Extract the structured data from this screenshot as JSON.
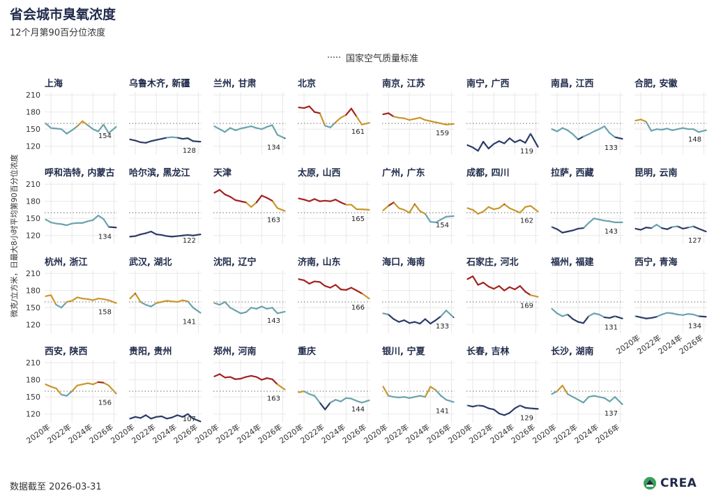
{
  "title": "省会城市臭氧浓度",
  "subtitle": "12个月第90百分位浓度",
  "legend_label": "国家空气质量标准",
  "y_axis_label": "微克/立方米，日最大8小时平均第90百分位浓度",
  "footer": "数据截至 2026-03-31",
  "logo_text": "CREA",
  "colors": {
    "title": "#1f2a4a",
    "low": "#2b3a67",
    "mid_low": "#6aa3ad",
    "mid_high": "#c8962a",
    "high": "#a3211f",
    "standard_line": "#888888",
    "grid": "#e8e8e8",
    "logo_green": "#3aa15a"
  },
  "chart_data": {
    "type": "line",
    "standard": 160,
    "ylim": [
      105,
      215
    ],
    "xlim": [
      2019.4,
      2026.3
    ],
    "y_ticks": [
      120,
      150,
      180,
      210
    ],
    "y_tick_labels": [
      "120",
      "150",
      "180",
      "210"
    ],
    "x_ticks": [
      2020,
      2022,
      2024,
      2026
    ],
    "x_tick_labels": [
      "2020年",
      "2022年",
      "2024年",
      "2026年"
    ],
    "panels": [
      {
        "name": "上海",
        "end": 154,
        "x": [
          2019.5,
          2020,
          2020.5,
          2021,
          2021.5,
          2022,
          2022.5,
          2023,
          2023.5,
          2024,
          2024.5,
          2025,
          2025.5,
          2026.2
        ],
        "y": [
          160,
          152,
          151,
          150,
          142,
          148,
          155,
          164,
          157,
          150,
          146,
          158,
          143,
          154
        ]
      },
      {
        "name": "乌鲁木齐, 新疆",
        "end": 128,
        "x": [
          2019.5,
          2020,
          2020.5,
          2021,
          2021.5,
          2022,
          2022.5,
          2023,
          2023.5,
          2024,
          2024.5,
          2025,
          2025.5,
          2026.2
        ],
        "y": [
          132,
          130,
          127,
          126,
          129,
          131,
          133,
          135,
          136,
          135,
          133,
          134,
          129,
          128
        ]
      },
      {
        "name": "兰州, 甘肃",
        "end": 134,
        "x": [
          2019.5,
          2020,
          2020.5,
          2021,
          2021.5,
          2022,
          2022.5,
          2023,
          2023.5,
          2024,
          2024.5,
          2025,
          2025.5,
          2026.2
        ],
        "y": [
          155,
          150,
          145,
          152,
          148,
          151,
          153,
          155,
          152,
          150,
          154,
          157,
          140,
          134
        ]
      },
      {
        "name": "北京",
        "end": 161,
        "x": [
          2019.5,
          2020,
          2020.5,
          2021,
          2021.5,
          2022,
          2022.5,
          2023,
          2023.5,
          2024,
          2024.5,
          2025,
          2025.5,
          2026.2
        ],
        "y": [
          188,
          187,
          190,
          180,
          178,
          156,
          153,
          162,
          170,
          175,
          186,
          172,
          158,
          161
        ]
      },
      {
        "name": "南京, 江苏",
        "end": 159,
        "x": [
          2019.5,
          2020,
          2020.5,
          2021,
          2021.5,
          2022,
          2022.5,
          2023,
          2023.5,
          2024,
          2024.5,
          2025,
          2025.5,
          2026.2
        ],
        "y": [
          176,
          178,
          172,
          170,
          169,
          166,
          168,
          170,
          166,
          164,
          162,
          160,
          158,
          159
        ]
      },
      {
        "name": "南宁, 广西",
        "end": 119,
        "x": [
          2019.5,
          2020,
          2020.5,
          2021,
          2021.5,
          2022,
          2022.5,
          2023,
          2023.5,
          2024,
          2024.5,
          2025,
          2025.5,
          2026.2
        ],
        "y": [
          122,
          118,
          112,
          128,
          116,
          124,
          129,
          125,
          134,
          127,
          131,
          126,
          142,
          119
        ]
      },
      {
        "name": "南昌, 江西",
        "end": 133,
        "x": [
          2019.5,
          2020,
          2020.5,
          2021,
          2021.5,
          2022,
          2022.5,
          2023,
          2023.5,
          2024,
          2024.5,
          2025,
          2025.5,
          2026.2
        ],
        "y": [
          150,
          146,
          152,
          148,
          141,
          132,
          137,
          141,
          146,
          150,
          155,
          143,
          136,
          133
        ]
      },
      {
        "name": "合肥, 安徽",
        "end": 148,
        "x": [
          2019.5,
          2020,
          2020.5,
          2021,
          2021.5,
          2022,
          2022.5,
          2023,
          2023.5,
          2024,
          2024.5,
          2025,
          2025.5,
          2026.2
        ],
        "y": [
          165,
          167,
          163,
          147,
          150,
          149,
          151,
          148,
          150,
          152,
          150,
          150,
          145,
          148
        ]
      },
      {
        "name": "呼和浩特, 内蒙古",
        "end": 134,
        "x": [
          2019.5,
          2020,
          2020.5,
          2021,
          2021.5,
          2022,
          2022.5,
          2023,
          2023.5,
          2024,
          2024.5,
          2025,
          2025.5,
          2026.2
        ],
        "y": [
          148,
          143,
          141,
          140,
          138,
          141,
          142,
          142,
          145,
          147,
          155,
          149,
          135,
          134
        ]
      },
      {
        "name": "哈尔滨, 黑龙江",
        "end": 122,
        "x": [
          2019.5,
          2020,
          2020.5,
          2021,
          2021.5,
          2022,
          2022.5,
          2023,
          2023.5,
          2024,
          2024.5,
          2025,
          2025.5,
          2026.2
        ],
        "y": [
          118,
          119,
          122,
          124,
          127,
          122,
          121,
          119,
          118,
          119,
          120,
          121,
          120,
          122
        ]
      },
      {
        "name": "天津",
        "end": 163,
        "x": [
          2019.5,
          2020,
          2020.5,
          2021,
          2021.5,
          2022,
          2022.5,
          2023,
          2023.5,
          2024,
          2024.5,
          2025,
          2025.5,
          2026.2
        ],
        "y": [
          195,
          200,
          192,
          188,
          182,
          180,
          178,
          170,
          178,
          190,
          186,
          181,
          168,
          163
        ]
      },
      {
        "name": "太原, 山西",
        "end": 165,
        "x": [
          2019.5,
          2020,
          2020.5,
          2021,
          2021.5,
          2022,
          2022.5,
          2023,
          2023.5,
          2024,
          2024.5,
          2025,
          2025.5,
          2026.2
        ],
        "y": [
          185,
          183,
          180,
          184,
          180,
          181,
          180,
          183,
          178,
          174,
          174,
          166,
          166,
          165
        ]
      },
      {
        "name": "广州, 广东",
        "end": 154,
        "x": [
          2019.5,
          2020,
          2020.5,
          2021,
          2021.5,
          2022,
          2022.5,
          2023,
          2023.5,
          2024,
          2024.5,
          2025,
          2025.5,
          2026.2
        ],
        "y": [
          164,
          172,
          178,
          168,
          165,
          160,
          175,
          163,
          158,
          144,
          143,
          148,
          153,
          154
        ]
      },
      {
        "name": "成都, 四川",
        "end": 162,
        "x": [
          2019.5,
          2020,
          2020.5,
          2021,
          2021.5,
          2022,
          2022.5,
          2023,
          2023.5,
          2024,
          2024.5,
          2025,
          2025.5,
          2026.2
        ],
        "y": [
          168,
          165,
          158,
          162,
          170,
          166,
          168,
          175,
          168,
          164,
          160,
          170,
          172,
          162
        ]
      },
      {
        "name": "拉萨, 西藏",
        "end": 143,
        "x": [
          2019.5,
          2020,
          2020.5,
          2021,
          2021.5,
          2022,
          2022.5,
          2023,
          2023.5,
          2024,
          2024.5,
          2025,
          2025.5,
          2026.2
        ],
        "y": [
          135,
          131,
          125,
          127,
          129,
          132,
          133,
          142,
          150,
          148,
          146,
          145,
          143,
          143
        ]
      },
      {
        "name": "昆明, 云南",
        "end": 127,
        "x": [
          2019.5,
          2020,
          2020.5,
          2021,
          2021.5,
          2022,
          2022.5,
          2023,
          2023.5,
          2024,
          2024.5,
          2025,
          2025.5,
          2026.2
        ],
        "y": [
          132,
          130,
          134,
          133,
          139,
          133,
          131,
          135,
          136,
          132,
          134,
          136,
          132,
          127
        ]
      },
      {
        "name": "杭州, 浙江",
        "end": 158,
        "x": [
          2019.5,
          2020,
          2020.5,
          2021,
          2021.5,
          2022,
          2022.5,
          2023,
          2023.5,
          2024,
          2024.5,
          2025,
          2025.5,
          2026.2
        ],
        "y": [
          170,
          172,
          155,
          150,
          160,
          162,
          168,
          166,
          165,
          163,
          166,
          165,
          163,
          158
        ]
      },
      {
        "name": "武汉, 湖北",
        "end": 141,
        "x": [
          2019.5,
          2020,
          2020.5,
          2021,
          2021.5,
          2022,
          2022.5,
          2023,
          2023.5,
          2024,
          2024.5,
          2025,
          2025.5,
          2026.2
        ],
        "y": [
          166,
          175,
          160,
          155,
          152,
          158,
          160,
          162,
          161,
          160,
          163,
          161,
          150,
          141
        ]
      },
      {
        "name": "沈阳, 辽宁",
        "end": 143,
        "x": [
          2019.5,
          2020,
          2020.5,
          2021,
          2021.5,
          2022,
          2022.5,
          2023,
          2023.5,
          2024,
          2024.5,
          2025,
          2025.5,
          2026.2
        ],
        "y": [
          158,
          155,
          160,
          150,
          145,
          140,
          142,
          150,
          148,
          152,
          148,
          150,
          140,
          143
        ]
      },
      {
        "name": "济南, 山东",
        "end": 166,
        "x": [
          2019.5,
          2020,
          2020.5,
          2021,
          2021.5,
          2022,
          2022.5,
          2023,
          2023.5,
          2024,
          2024.5,
          2025,
          2025.5,
          2026.2
        ],
        "y": [
          200,
          198,
          192,
          196,
          195,
          188,
          185,
          190,
          182,
          181,
          185,
          180,
          175,
          166
        ]
      },
      {
        "name": "海口, 海南",
        "end": 133,
        "x": [
          2019.5,
          2020,
          2020.5,
          2021,
          2021.5,
          2022,
          2022.5,
          2023,
          2023.5,
          2024,
          2024.5,
          2025,
          2025.5,
          2026.2
        ],
        "y": [
          140,
          138,
          130,
          125,
          128,
          123,
          125,
          122,
          130,
          122,
          128,
          135,
          145,
          133
        ]
      },
      {
        "name": "石家庄, 河北",
        "end": 169,
        "x": [
          2019.5,
          2020,
          2020.5,
          2021,
          2021.5,
          2022,
          2022.5,
          2023,
          2023.5,
          2024,
          2024.5,
          2025,
          2025.5,
          2026.2
        ],
        "y": [
          200,
          205,
          190,
          194,
          187,
          183,
          188,
          180,
          186,
          182,
          188,
          178,
          172,
          169
        ]
      },
      {
        "name": "福州, 福建",
        "end": 131,
        "x": [
          2019.5,
          2020,
          2020.5,
          2021,
          2021.5,
          2022,
          2022.5,
          2023,
          2023.5,
          2024,
          2024.5,
          2025,
          2025.5,
          2026.2
        ],
        "y": [
          148,
          140,
          135,
          138,
          130,
          125,
          123,
          135,
          140,
          138,
          133,
          132,
          135,
          131
        ]
      },
      {
        "name": "西宁, 青海",
        "end": 134,
        "x": [
          2019.5,
          2020,
          2020.5,
          2021,
          2021.5,
          2022,
          2022.5,
          2023,
          2023.5,
          2024,
          2024.5,
          2025,
          2025.5,
          2026.2
        ],
        "y": [
          135,
          133,
          131,
          132,
          134,
          138,
          141,
          140,
          138,
          137,
          139,
          138,
          135,
          134
        ]
      },
      {
        "name": "西安, 陕西",
        "end": 156,
        "x": [
          2019.5,
          2020,
          2020.5,
          2021,
          2021.5,
          2022,
          2022.5,
          2023,
          2023.5,
          2024,
          2024.5,
          2025,
          2025.5,
          2026.2
        ],
        "y": [
          172,
          168,
          165,
          154,
          152,
          160,
          170,
          172,
          174,
          172,
          176,
          175,
          170,
          156
        ]
      },
      {
        "name": "贵阳, 贵州",
        "end": 107,
        "x": [
          2019.5,
          2020,
          2020.5,
          2021,
          2021.5,
          2022,
          2022.5,
          2023,
          2023.5,
          2024,
          2024.5,
          2025,
          2025.5,
          2026.2
        ],
        "y": [
          112,
          115,
          113,
          118,
          112,
          115,
          116,
          112,
          114,
          118,
          115,
          120,
          112,
          107
        ]
      },
      {
        "name": "郑州, 河南",
        "end": 163,
        "x": [
          2019.5,
          2020,
          2020.5,
          2021,
          2021.5,
          2022,
          2022.5,
          2023,
          2023.5,
          2024,
          2024.5,
          2025,
          2025.5,
          2026.2
        ],
        "y": [
          186,
          190,
          184,
          185,
          181,
          182,
          185,
          187,
          185,
          180,
          183,
          181,
          172,
          163
        ]
      },
      {
        "name": "重庆",
        "end": 144,
        "x": [
          2019.5,
          2020,
          2020.5,
          2021,
          2021.5,
          2022,
          2022.5,
          2023,
          2023.5,
          2024,
          2024.5,
          2025,
          2025.5,
          2026.2
        ],
        "y": [
          158,
          160,
          155,
          152,
          140,
          128,
          140,
          145,
          142,
          148,
          147,
          143,
          140,
          144
        ]
      },
      {
        "name": "银川, 宁夏",
        "end": 141,
        "x": [
          2019.5,
          2020,
          2020.5,
          2021,
          2021.5,
          2022,
          2022.5,
          2023,
          2023.5,
          2024,
          2024.5,
          2025,
          2025.5,
          2026.2
        ],
        "y": [
          168,
          152,
          150,
          149,
          150,
          148,
          150,
          152,
          150,
          168,
          162,
          152,
          145,
          141
        ]
      },
      {
        "name": "长春, 吉林",
        "end": 129,
        "x": [
          2019.5,
          2020,
          2020.5,
          2021,
          2021.5,
          2022,
          2022.5,
          2023,
          2023.5,
          2024,
          2024.5,
          2025,
          2025.5,
          2026.2
        ],
        "y": [
          135,
          133,
          135,
          134,
          130,
          128,
          121,
          118,
          122,
          130,
          135,
          131,
          130,
          129
        ]
      },
      {
        "name": "长沙, 湖南",
        "end": 137,
        "x": [
          2019.5,
          2020,
          2020.5,
          2021,
          2021.5,
          2022,
          2022.5,
          2023,
          2023.5,
          2024,
          2024.5,
          2025,
          2025.5,
          2026.2
        ],
        "y": [
          155,
          160,
          170,
          155,
          150,
          145,
          140,
          150,
          152,
          150,
          148,
          142,
          150,
          137
        ]
      }
    ]
  }
}
